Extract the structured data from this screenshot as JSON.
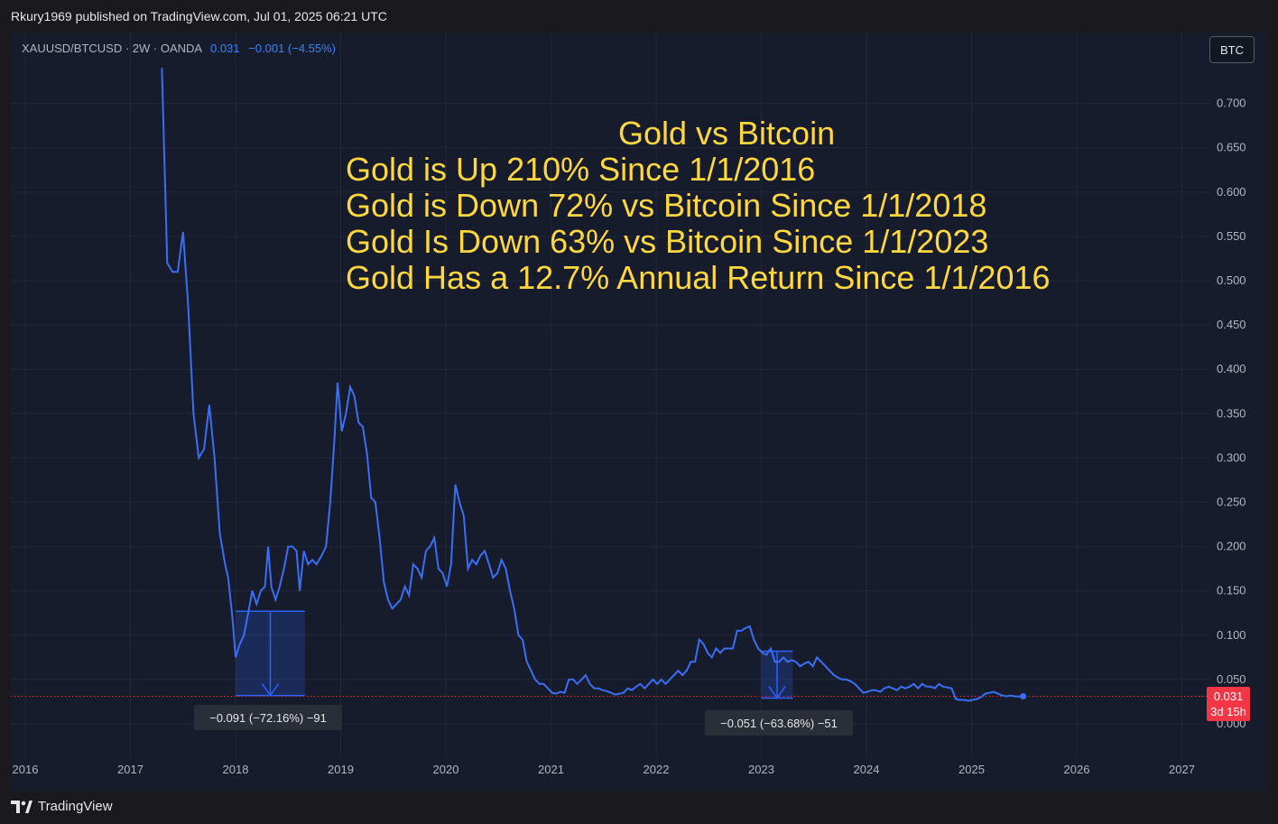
{
  "publish_info": "Rkury1969 published on TradingView.com, Jul 01, 2025 06:21 UTC",
  "symbol": {
    "label": "XAUUSD/BTCUSD · 2W · OANDA",
    "last": "0.031",
    "change": "−0.001 (−4.55%)"
  },
  "currency_button": "BTC",
  "annotation": {
    "title": "Gold vs Bitcoin",
    "lines": [
      "Gold is Up 210% Since 1/1/2016",
      "Gold is Down 72% vs Bitcoin Since 1/1/2018",
      "Gold Is Down 63% vs Bitcoin Since 1/1/2023",
      "Gold Has a 12.7% Annual Return Since 1/1/2016"
    ]
  },
  "measure_tooltips": [
    "−0.091 (−72.16%) −91",
    "−0.051 (−63.68%) −51"
  ],
  "price_badge": {
    "value": "0.031",
    "countdown": "3d 15h"
  },
  "footer_brand": "TradingView",
  "colors": {
    "line": "#3b6ef5",
    "annotation": "#ffd740",
    "badge": "#f23645",
    "background": "#161c2b"
  },
  "chart_data": {
    "type": "line",
    "series": [
      {
        "color": "#3b6ef5",
        "points": [
          [
            2017.3,
            0.74
          ],
          [
            2017.35,
            0.52
          ],
          [
            2017.4,
            0.51
          ],
          [
            2017.45,
            0.51
          ],
          [
            2017.5,
            0.555
          ],
          [
            2017.55,
            0.47
          ],
          [
            2017.6,
            0.35
          ],
          [
            2017.65,
            0.3
          ],
          [
            2017.7,
            0.31
          ],
          [
            2017.75,
            0.36
          ],
          [
            2017.8,
            0.3
          ],
          [
            2017.85,
            0.215
          ],
          [
            2017.9,
            0.18
          ],
          [
            2017.93,
            0.165
          ],
          [
            2017.97,
            0.12
          ],
          [
            2018.0,
            0.075
          ],
          [
            2018.04,
            0.09
          ],
          [
            2018.08,
            0.1
          ],
          [
            2018.12,
            0.125
          ],
          [
            2018.16,
            0.15
          ],
          [
            2018.2,
            0.135
          ],
          [
            2018.24,
            0.15
          ],
          [
            2018.28,
            0.155
          ],
          [
            2018.31,
            0.2
          ],
          [
            2018.34,
            0.155
          ],
          [
            2018.38,
            0.14
          ],
          [
            2018.42,
            0.155
          ],
          [
            2018.46,
            0.175
          ],
          [
            2018.5,
            0.2
          ],
          [
            2018.54,
            0.2
          ],
          [
            2018.58,
            0.195
          ],
          [
            2018.61,
            0.15
          ],
          [
            2018.65,
            0.195
          ],
          [
            2018.69,
            0.18
          ],
          [
            2018.73,
            0.185
          ],
          [
            2018.77,
            0.18
          ],
          [
            2018.82,
            0.19
          ],
          [
            2018.86,
            0.2
          ],
          [
            2018.9,
            0.25
          ],
          [
            2018.94,
            0.32
          ],
          [
            2018.97,
            0.385
          ],
          [
            2019.01,
            0.33
          ],
          [
            2019.05,
            0.35
          ],
          [
            2019.09,
            0.38
          ],
          [
            2019.13,
            0.37
          ],
          [
            2019.17,
            0.34
          ],
          [
            2019.21,
            0.335
          ],
          [
            2019.25,
            0.305
          ],
          [
            2019.29,
            0.255
          ],
          [
            2019.33,
            0.25
          ],
          [
            2019.37,
            0.21
          ],
          [
            2019.41,
            0.16
          ],
          [
            2019.45,
            0.14
          ],
          [
            2019.49,
            0.13
          ],
          [
            2019.53,
            0.135
          ],
          [
            2019.57,
            0.14
          ],
          [
            2019.61,
            0.155
          ],
          [
            2019.65,
            0.145
          ],
          [
            2019.69,
            0.18
          ],
          [
            2019.73,
            0.175
          ],
          [
            2019.77,
            0.165
          ],
          [
            2019.81,
            0.195
          ],
          [
            2019.85,
            0.2
          ],
          [
            2019.89,
            0.21
          ],
          [
            2019.93,
            0.175
          ],
          [
            2019.97,
            0.17
          ],
          [
            2020.01,
            0.155
          ],
          [
            2020.05,
            0.18
          ],
          [
            2020.09,
            0.27
          ],
          [
            2020.13,
            0.25
          ],
          [
            2020.17,
            0.235
          ],
          [
            2020.21,
            0.175
          ],
          [
            2020.25,
            0.185
          ],
          [
            2020.29,
            0.18
          ],
          [
            2020.33,
            0.19
          ],
          [
            2020.37,
            0.195
          ],
          [
            2020.41,
            0.18
          ],
          [
            2020.45,
            0.165
          ],
          [
            2020.49,
            0.17
          ],
          [
            2020.53,
            0.185
          ],
          [
            2020.57,
            0.175
          ],
          [
            2020.61,
            0.15
          ],
          [
            2020.65,
            0.13
          ],
          [
            2020.69,
            0.1
          ],
          [
            2020.73,
            0.095
          ],
          [
            2020.77,
            0.07
          ],
          [
            2020.81,
            0.06
          ],
          [
            2020.85,
            0.05
          ],
          [
            2020.89,
            0.045
          ],
          [
            2020.93,
            0.045
          ],
          [
            2020.97,
            0.04
          ],
          [
            2021.01,
            0.035
          ],
          [
            2021.05,
            0.034
          ],
          [
            2021.09,
            0.036
          ],
          [
            2021.13,
            0.035
          ],
          [
            2021.17,
            0.05
          ],
          [
            2021.21,
            0.05
          ],
          [
            2021.25,
            0.045
          ],
          [
            2021.29,
            0.05
          ],
          [
            2021.33,
            0.055
          ],
          [
            2021.37,
            0.045
          ],
          [
            2021.41,
            0.04
          ],
          [
            2021.45,
            0.04
          ],
          [
            2021.49,
            0.038
          ],
          [
            2021.53,
            0.037
          ],
          [
            2021.57,
            0.035
          ],
          [
            2021.61,
            0.033
          ],
          [
            2021.65,
            0.034
          ],
          [
            2021.69,
            0.035
          ],
          [
            2021.73,
            0.04
          ],
          [
            2021.77,
            0.038
          ],
          [
            2021.81,
            0.042
          ],
          [
            2021.85,
            0.045
          ],
          [
            2021.89,
            0.04
          ],
          [
            2021.93,
            0.045
          ],
          [
            2021.97,
            0.05
          ],
          [
            2022.01,
            0.045
          ],
          [
            2022.05,
            0.05
          ],
          [
            2022.09,
            0.045
          ],
          [
            2022.13,
            0.05
          ],
          [
            2022.17,
            0.055
          ],
          [
            2022.21,
            0.06
          ],
          [
            2022.25,
            0.055
          ],
          [
            2022.29,
            0.06
          ],
          [
            2022.33,
            0.07
          ],
          [
            2022.37,
            0.07
          ],
          [
            2022.41,
            0.095
          ],
          [
            2022.45,
            0.09
          ],
          [
            2022.49,
            0.08
          ],
          [
            2022.53,
            0.075
          ],
          [
            2022.57,
            0.085
          ],
          [
            2022.61,
            0.08
          ],
          [
            2022.65,
            0.085
          ],
          [
            2022.69,
            0.085
          ],
          [
            2022.73,
            0.085
          ],
          [
            2022.77,
            0.105
          ],
          [
            2022.81,
            0.105
          ],
          [
            2022.85,
            0.108
          ],
          [
            2022.89,
            0.11
          ],
          [
            2022.93,
            0.095
          ],
          [
            2022.97,
            0.085
          ],
          [
            2023.01,
            0.08
          ],
          [
            2023.05,
            0.078
          ],
          [
            2023.09,
            0.085
          ],
          [
            2023.13,
            0.07
          ],
          [
            2023.17,
            0.07
          ],
          [
            2023.21,
            0.075
          ],
          [
            2023.25,
            0.07
          ],
          [
            2023.29,
            0.072
          ],
          [
            2023.33,
            0.07
          ],
          [
            2023.37,
            0.065
          ],
          [
            2023.41,
            0.068
          ],
          [
            2023.45,
            0.07
          ],
          [
            2023.49,
            0.065
          ],
          [
            2023.53,
            0.075
          ],
          [
            2023.57,
            0.07
          ],
          [
            2023.61,
            0.065
          ],
          [
            2023.65,
            0.06
          ],
          [
            2023.69,
            0.055
          ],
          [
            2023.73,
            0.052
          ],
          [
            2023.77,
            0.05
          ],
          [
            2023.81,
            0.05
          ],
          [
            2023.85,
            0.048
          ],
          [
            2023.89,
            0.045
          ],
          [
            2023.93,
            0.04
          ],
          [
            2023.97,
            0.035
          ],
          [
            2024.01,
            0.036
          ],
          [
            2024.05,
            0.038
          ],
          [
            2024.09,
            0.038
          ],
          [
            2024.13,
            0.036
          ],
          [
            2024.17,
            0.04
          ],
          [
            2024.21,
            0.042
          ],
          [
            2024.25,
            0.04
          ],
          [
            2024.29,
            0.038
          ],
          [
            2024.33,
            0.042
          ],
          [
            2024.37,
            0.04
          ],
          [
            2024.41,
            0.042
          ],
          [
            2024.45,
            0.045
          ],
          [
            2024.49,
            0.04
          ],
          [
            2024.53,
            0.045
          ],
          [
            2024.57,
            0.042
          ],
          [
            2024.61,
            0.042
          ],
          [
            2024.65,
            0.04
          ],
          [
            2024.69,
            0.045
          ],
          [
            2024.73,
            0.042
          ],
          [
            2024.77,
            0.041
          ],
          [
            2024.81,
            0.04
          ],
          [
            2024.85,
            0.028
          ],
          [
            2024.89,
            0.027
          ],
          [
            2024.93,
            0.027
          ],
          [
            2024.97,
            0.026
          ],
          [
            2025.01,
            0.027
          ],
          [
            2025.05,
            0.028
          ],
          [
            2025.09,
            0.03
          ],
          [
            2025.13,
            0.034
          ],
          [
            2025.17,
            0.035
          ],
          [
            2025.21,
            0.036
          ],
          [
            2025.25,
            0.034
          ],
          [
            2025.29,
            0.032
          ],
          [
            2025.33,
            0.031
          ],
          [
            2025.37,
            0.032
          ],
          [
            2025.41,
            0.031
          ],
          [
            2025.45,
            0.031
          ],
          [
            2025.49,
            0.031
          ]
        ]
      }
    ],
    "xlim": [
      2016.0,
      2027.2
    ],
    "ylim": [
      -0.02,
      0.77
    ],
    "x_ticks": [
      "2016",
      "2017",
      "2018",
      "2019",
      "2020",
      "2021",
      "2022",
      "2023",
      "2024",
      "2025",
      "2026",
      "2027"
    ],
    "y_ticks": [
      "0.700",
      "0.650",
      "0.600",
      "0.550",
      "0.500",
      "0.450",
      "0.400",
      "0.350",
      "0.300",
      "0.250",
      "0.200",
      "0.150",
      "0.100",
      "0.050",
      "0.000"
    ],
    "last_value": 0.031,
    "measurements": [
      {
        "x_from": 2018.0,
        "x_to": 2018.66,
        "y_top": 0.127,
        "y_bottom": 0.032
      },
      {
        "x_from": 2023.0,
        "x_to": 2023.3,
        "y_top": 0.082,
        "y_bottom": 0.029
      }
    ],
    "grid": true
  }
}
